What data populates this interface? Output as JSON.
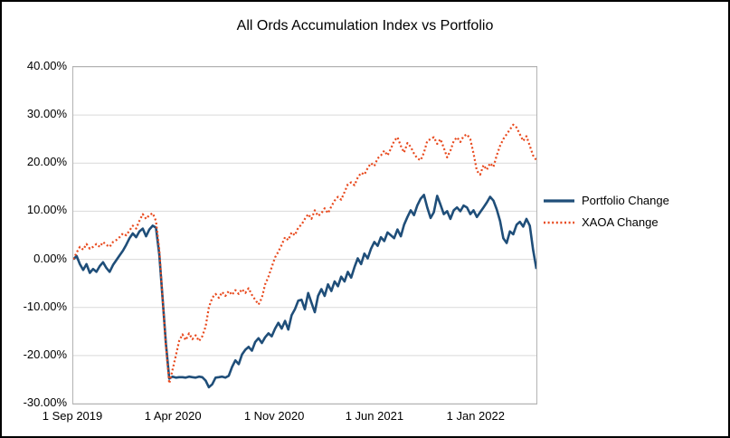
{
  "colors": {
    "background": "#ffffff",
    "outer_border": "#000000",
    "plot_border": "#b3b3b3",
    "grid": "#d9d9d9",
    "text": "#000000",
    "portfolio_line": "#1f4e79",
    "xaoa_line": "#e8491d"
  },
  "chart_data": {
    "type": "line",
    "title": "All Ords Accumulation Index vs Portfolio",
    "xlabel": "",
    "ylabel": "",
    "x_unit": "weeks since 1 Sep 2019",
    "x_domain": [
      0,
      140
    ],
    "ylim": [
      -30,
      40
    ],
    "grid": "horizontal only",
    "legend_position": "right",
    "y_ticks": [
      {
        "value": 40,
        "label": "40.00%"
      },
      {
        "value": 30,
        "label": "30.00%"
      },
      {
        "value": 20,
        "label": "20.00%"
      },
      {
        "value": 10,
        "label": "10.00%"
      },
      {
        "value": 0,
        "label": "0.00%"
      },
      {
        "value": -10,
        "label": "-10.00%"
      },
      {
        "value": -20,
        "label": "-20.00%"
      },
      {
        "value": -30,
        "label": "-30.00%"
      }
    ],
    "x_ticks": [
      {
        "week": 0,
        "label": "1 Sep 2019"
      },
      {
        "week": 30.4,
        "label": "1 Apr 2020"
      },
      {
        "week": 61,
        "label": "1 Nov 2020"
      },
      {
        "week": 91.3,
        "label": "1 Jun 2021"
      },
      {
        "week": 121.9,
        "label": "1 Jan 2022"
      }
    ],
    "series": [
      {
        "key": "portfolio",
        "name": "Portfolio Change",
        "color": "#1f4e79",
        "dash": "solid",
        "width": 2.6,
        "values": [
          0,
          0.7,
          -1,
          -2.2,
          -1,
          -2.8,
          -2,
          -2.6,
          -1.4,
          -0.6,
          -1.8,
          -2.6,
          -1.2,
          -0.2,
          0.8,
          1.8,
          3,
          4.4,
          5.4,
          4.6,
          5.8,
          6.4,
          4.8,
          6.2,
          7,
          6.6,
          1,
          -8,
          -17.5,
          -24.8,
          -24.4,
          -24.6,
          -24.5,
          -24.5,
          -24.6,
          -24.4,
          -24.5,
          -24.6,
          -24.4,
          -24.5,
          -25.2,
          -26.6,
          -26,
          -24.6,
          -24.5,
          -24.4,
          -24.6,
          -24.2,
          -22.4,
          -21,
          -21.8,
          -19.8,
          -18.8,
          -18.2,
          -19,
          -17.2,
          -16.4,
          -17.4,
          -16.2,
          -15.4,
          -16,
          -14.4,
          -13.2,
          -14.4,
          -12.8,
          -14.6,
          -11.6,
          -10.4,
          -8.6,
          -8.4,
          -10.4,
          -7,
          -9,
          -11,
          -7.6,
          -6.2,
          -7.6,
          -5.2,
          -6.6,
          -4.6,
          -5.6,
          -3.6,
          -4.6,
          -2.6,
          -3.8,
          -1.6,
          0.2,
          -1,
          1.2,
          0.2,
          2.2,
          3.6,
          2.8,
          4.6,
          3.8,
          5.6,
          5,
          4.4,
          6.2,
          4.8,
          7.2,
          8.8,
          10.2,
          9.2,
          11.2,
          12.6,
          13.4,
          10.8,
          8.6,
          9.8,
          13.2,
          11.4,
          9.4,
          10,
          8.4,
          10.2,
          10.8,
          10,
          11.2,
          10.8,
          9.4,
          10.2,
          8.8,
          9.8,
          10.8,
          11.8,
          13,
          12.2,
          10.4,
          8,
          4.4,
          3.4,
          5.8,
          5.2,
          7.2,
          7.8,
          6.8,
          8.4,
          7,
          2,
          -2
        ]
      },
      {
        "key": "xaoa",
        "name": "XAOA Change",
        "color": "#e8491d",
        "dash": "dotted",
        "width": 2.2,
        "values": [
          0,
          1.4,
          2.6,
          2,
          3.2,
          2.2,
          2.6,
          3.2,
          2.6,
          3.6,
          3,
          2.6,
          3.6,
          4,
          4.6,
          5.4,
          5,
          6,
          7,
          6.4,
          8,
          9.4,
          8.4,
          9.2,
          9.6,
          8,
          2,
          -8,
          -18,
          -25.8,
          -23,
          -20,
          -17,
          -15.6,
          -16.8,
          -15.4,
          -16.6,
          -15.8,
          -17,
          -16,
          -14,
          -10,
          -8,
          -7.2,
          -8,
          -6.8,
          -7.6,
          -6.6,
          -7.4,
          -6.4,
          -7.2,
          -6.2,
          -7,
          -6,
          -7.4,
          -8.4,
          -9.4,
          -8,
          -5.2,
          -3.6,
          -1.6,
          0.4,
          1.6,
          3,
          4.6,
          4,
          5.6,
          5,
          6.6,
          7.2,
          8.4,
          9.4,
          8.4,
          10.2,
          9,
          9.6,
          10.6,
          9.6,
          11,
          12.2,
          13,
          12.4,
          14,
          15.6,
          16,
          15.4,
          17,
          18,
          17.6,
          19,
          20,
          19.4,
          21,
          21.6,
          22.6,
          21.6,
          23,
          24.6,
          25.4,
          23.6,
          22.2,
          24.2,
          23.4,
          22,
          21,
          20.6,
          22.2,
          24.6,
          25,
          25.4,
          24,
          25,
          23.2,
          21.2,
          22.6,
          24.6,
          25.4,
          24.4,
          25.6,
          26,
          25,
          22,
          18.4,
          17.6,
          19.6,
          18.6,
          20,
          19.2,
          21.6,
          23.6,
          25,
          26,
          27,
          28,
          27.4,
          26,
          24.6,
          25.6,
          23.6,
          21.6,
          20.6
        ]
      }
    ]
  }
}
